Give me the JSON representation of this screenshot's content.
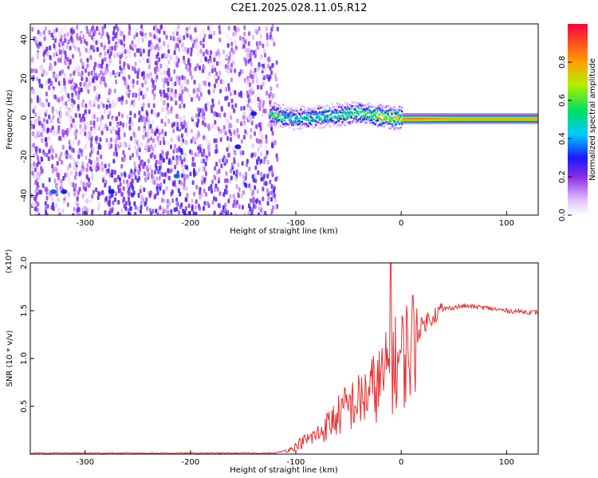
{
  "title": "C2E1.2025.028.11.05.R12",
  "chart_data": [
    {
      "type": "heatmap",
      "xlabel": "Height of straight line (km)",
      "ylabel": "Frequency (Hz)",
      "xlim": [
        -352,
        130
      ],
      "ylim": [
        -50,
        48
      ],
      "xticks": [
        -300,
        -200,
        -100,
        0,
        100
      ],
      "yticks": [
        -40,
        -20,
        0,
        20,
        40
      ],
      "grid": false,
      "description_points": [
        {
          "x": -330,
          "y": -38,
          "value": 0.35
        },
        {
          "x": -320,
          "y": -38,
          "value": 0.3
        },
        {
          "x": -275,
          "y": -38,
          "value": 0.3
        },
        {
          "x": -213,
          "y": -30,
          "value": 0.35
        },
        {
          "x": -155,
          "y": -15,
          "value": 0.3
        },
        {
          "x": -140,
          "y": 2,
          "value": 0.3
        }
      ],
      "ridge": {
        "x": [
          -120,
          -100,
          -80,
          -60,
          -40,
          -20,
          0,
          20,
          50,
          80,
          110,
          130
        ],
        "y": [
          2,
          0,
          1,
          2,
          3,
          1,
          0,
          0,
          0,
          0,
          0,
          0
        ],
        "amplitude": [
          0.65,
          0.55,
          0.6,
          0.6,
          0.65,
          0.85,
          0.85,
          0.85,
          0.8,
          0.8,
          0.8,
          0.8
        ]
      },
      "colorbar": {
        "label": "Normalized spectral amplitude",
        "range": [
          0,
          1
        ],
        "ticks": [
          0.0,
          0.2,
          0.4,
          0.6,
          0.8
        ]
      }
    },
    {
      "type": "line",
      "xlabel": "Height of straight line (km)",
      "ylabel": "SNR (10 * v/v)",
      "yscale_label": "(x10⁴)",
      "xlim": [
        -352,
        130
      ],
      "ylim": [
        0,
        2.0
      ],
      "xticks": [
        -300,
        -200,
        -100,
        0,
        100
      ],
      "yticks": [
        0.5,
        1.0,
        1.5,
        2.0
      ],
      "grid": false,
      "color": "#e83030",
      "series": [
        {
          "x": [
            -352,
            -120,
            -105,
            -95,
            -80,
            -70,
            -60,
            -50,
            -40,
            -30,
            -20,
            -10,
            0,
            10,
            20,
            30,
            40,
            60,
            80,
            100,
            130
          ],
          "y": [
            0.01,
            0.01,
            0.05,
            0.12,
            0.2,
            0.3,
            0.4,
            0.5,
            0.55,
            0.65,
            0.75,
            0.9,
            1.0,
            1.15,
            1.35,
            1.45,
            1.52,
            1.55,
            1.53,
            1.5,
            1.48
          ]
        }
      ]
    }
  ]
}
